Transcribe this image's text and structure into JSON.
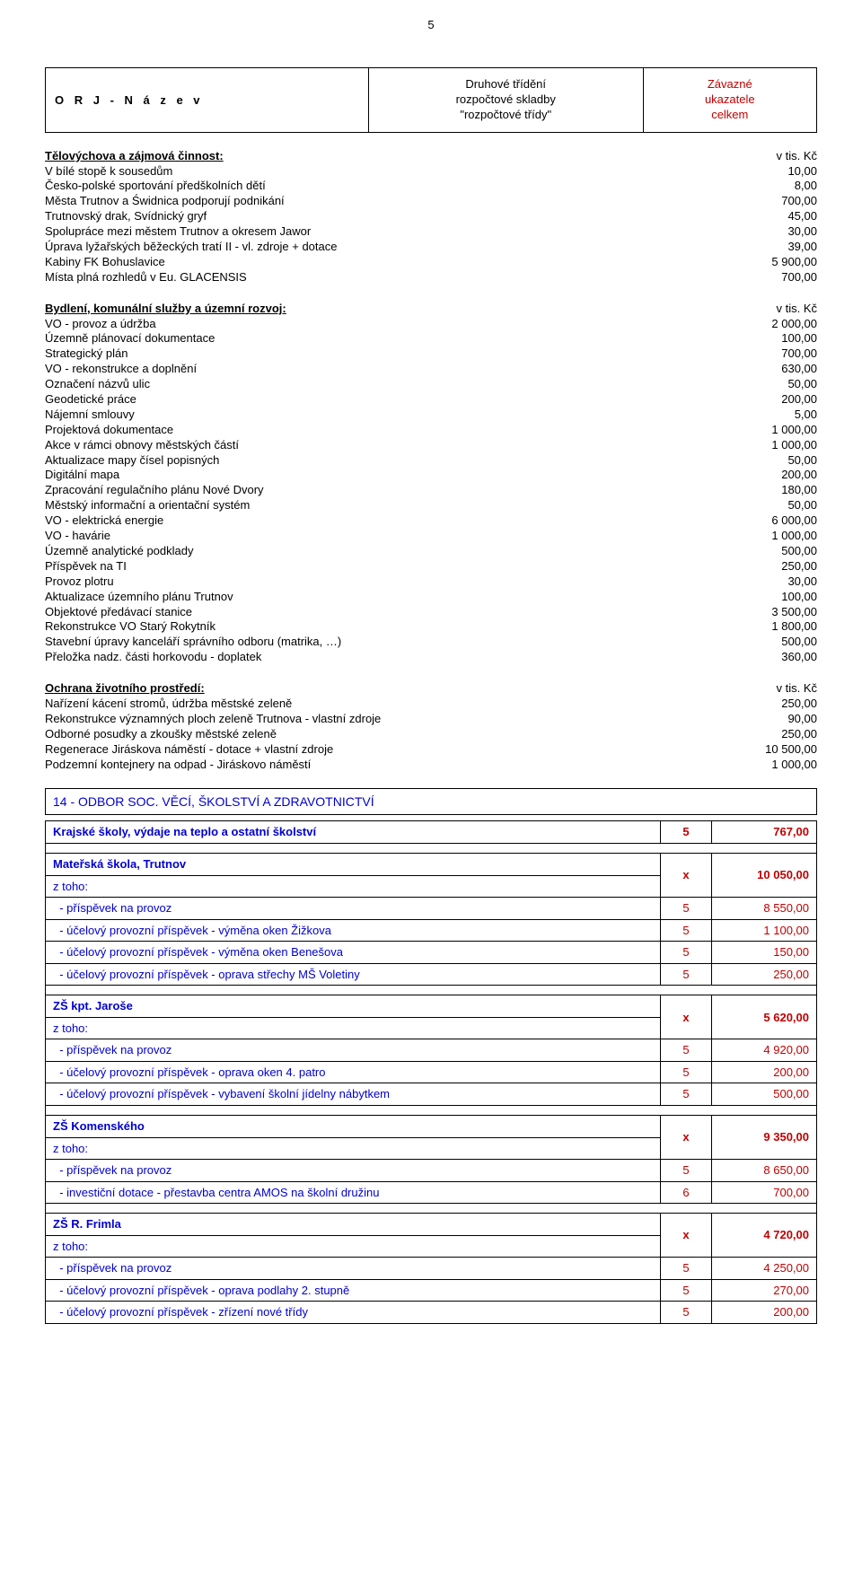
{
  "page_number": "5",
  "header": {
    "a": "O R J  -  N á z e v",
    "b1": "Druhové třídění",
    "b2": "rozpočtové skladby",
    "b3": "\"rozpočtové třídy\"",
    "c1": "Závazné",
    "c2": "ukazatele",
    "c3": "celkem"
  },
  "sections": [
    {
      "title": "Tělovýchova a zájmová činnost:",
      "title_val": "v tis. Kč",
      "rows": [
        [
          "V bílé stopě k sousedům",
          "10,00"
        ],
        [
          "Česko-polské sportování předškolních dětí",
          "8,00"
        ],
        [
          "Města Trutnov a Świdnica podporují podnikání",
          "700,00"
        ],
        [
          "Trutnovský drak, Svídnický gryf",
          "45,00"
        ],
        [
          "Spolupráce mezi městem Trutnov a okresem Jawor",
          "30,00"
        ],
        [
          "Úprava lyžařských běžeckých tratí II - vl. zdroje + dotace",
          "39,00"
        ],
        [
          "Kabiny FK Bohuslavice",
          "5 900,00"
        ],
        [
          "Místa plná rozhledů v Eu. GLACENSIS",
          "700,00"
        ]
      ]
    },
    {
      "title": "Bydlení, komunální služby a územní rozvoj:",
      "title_val": "v tis. Kč",
      "rows": [
        [
          "VO - provoz a údržba",
          "2 000,00"
        ],
        [
          "Územně plánovací dokumentace",
          "100,00"
        ],
        [
          "Strategický plán",
          "700,00"
        ],
        [
          "VO - rekonstrukce a doplnění",
          "630,00"
        ],
        [
          "Označení názvů ulic",
          "50,00"
        ],
        [
          "Geodetické práce",
          "200,00"
        ],
        [
          "Nájemní smlouvy",
          "5,00"
        ],
        [
          "Projektová dokumentace",
          "1 000,00"
        ],
        [
          "Akce v rámci obnovy městských částí",
          "1 000,00"
        ],
        [
          "Aktualizace mapy čísel popisných",
          "50,00"
        ],
        [
          "Digitální mapa",
          "200,00"
        ],
        [
          "Zpracování regulačního plánu Nové Dvory",
          "180,00"
        ],
        [
          "Městský informační a orientační systém",
          "50,00"
        ],
        [
          "VO - elektrická energie",
          "6 000,00"
        ],
        [
          "VO - havárie",
          "1 000,00"
        ],
        [
          "Územně analytické podklady",
          "500,00"
        ],
        [
          "Příspěvek na TI",
          "250,00"
        ],
        [
          "Provoz plotru",
          "30,00"
        ],
        [
          "Aktualizace územního plánu Trutnov",
          "100,00"
        ],
        [
          "Objektové předávací stanice",
          "3 500,00"
        ],
        [
          "Rekonstrukce VO Starý Rokytník",
          "1 800,00"
        ],
        [
          "Stavební úpravy kanceláří správního odboru (matrika, …)",
          "500,00"
        ],
        [
          "Přeložka nadz. části horkovodu - doplatek",
          "360,00"
        ]
      ]
    },
    {
      "title": "Ochrana životního prostředí:",
      "title_val": "v tis. Kč",
      "rows": [
        [
          "Nařízení kácení stromů, údržba městské zeleně",
          "250,00"
        ],
        [
          "Rekonstrukce významných ploch zeleně Trutnova - vlastní zdroje",
          "90,00"
        ],
        [
          "Odborné posudky a zkoušky městské zeleně",
          "250,00"
        ],
        [
          "Regenerace Jiráskova náměstí - dotace + vlastní zdroje",
          "10 500,00"
        ],
        [
          "Podzemní kontejnery na odpad - Jiráskovo náměstí",
          "1 000,00"
        ]
      ]
    }
  ],
  "dept_title": "14 - ODBOR  SOC.  VĚCÍ,  ŠKOLSTVÍ  A  ZDRAVOTNICTVÍ",
  "table_rows": [
    {
      "bold": true,
      "cells": [
        "Krajské školy, výdaje na teplo a ostatní školství",
        "5",
        "767,00"
      ]
    },
    {
      "spacer": true
    },
    {
      "bold": true,
      "cells": [
        "Mateřská škola, Trutnov",
        "x",
        "10 050,00"
      ]
    },
    {
      "cells": [
        "z toho:",
        "",
        ""
      ],
      "merge_up": true
    },
    {
      "cells": [
        "  - příspěvek na provoz",
        "5",
        "8 550,00"
      ]
    },
    {
      "cells": [
        "  - účelový provozní příspěvek - výměna oken Žižkova",
        "5",
        "1 100,00"
      ]
    },
    {
      "cells": [
        "  - účelový provozní příspěvek - výměna oken Benešova",
        "5",
        "150,00"
      ]
    },
    {
      "cells": [
        "  - účelový provozní příspěvek - oprava střechy MŠ Voletiny",
        "5",
        "250,00"
      ]
    },
    {
      "spacer": true
    },
    {
      "bold": true,
      "cells": [
        "ZŠ kpt. Jaroše",
        "x",
        "5 620,00"
      ]
    },
    {
      "cells": [
        "z toho:",
        "",
        ""
      ],
      "merge_up": true
    },
    {
      "cells": [
        "  - příspěvek na provoz",
        "5",
        "4 920,00"
      ]
    },
    {
      "cells": [
        "  - účelový provozní příspěvek - oprava oken 4. patro",
        "5",
        "200,00"
      ]
    },
    {
      "cells": [
        "  - účelový provozní příspěvek - vybavení školní jídelny nábytkem",
        "5",
        "500,00"
      ]
    },
    {
      "spacer": true
    },
    {
      "bold": true,
      "cells": [
        "ZŠ Komenského",
        "x",
        "9 350,00"
      ]
    },
    {
      "cells": [
        "z toho:",
        "",
        ""
      ],
      "merge_up": true
    },
    {
      "cells": [
        "  - příspěvek na provoz",
        "5",
        "8 650,00"
      ]
    },
    {
      "cells": [
        "  - investiční dotace - přestavba centra AMOS na školní družinu",
        "6",
        "700,00"
      ]
    },
    {
      "spacer": true
    },
    {
      "bold": true,
      "cells": [
        "ZŠ R. Frimla",
        "x",
        "4 720,00"
      ]
    },
    {
      "cells": [
        "z toho:",
        "",
        ""
      ],
      "merge_up": true
    },
    {
      "cells": [
        "  - příspěvek na provoz",
        "5",
        "4 250,00"
      ]
    },
    {
      "cells": [
        "  - účelový provozní příspěvek - oprava podlahy 2. stupně",
        "5",
        "270,00"
      ]
    },
    {
      "cells": [
        "  - účelový provozní příspěvek - zřízení nové třídy",
        "5",
        "200,00"
      ]
    }
  ]
}
